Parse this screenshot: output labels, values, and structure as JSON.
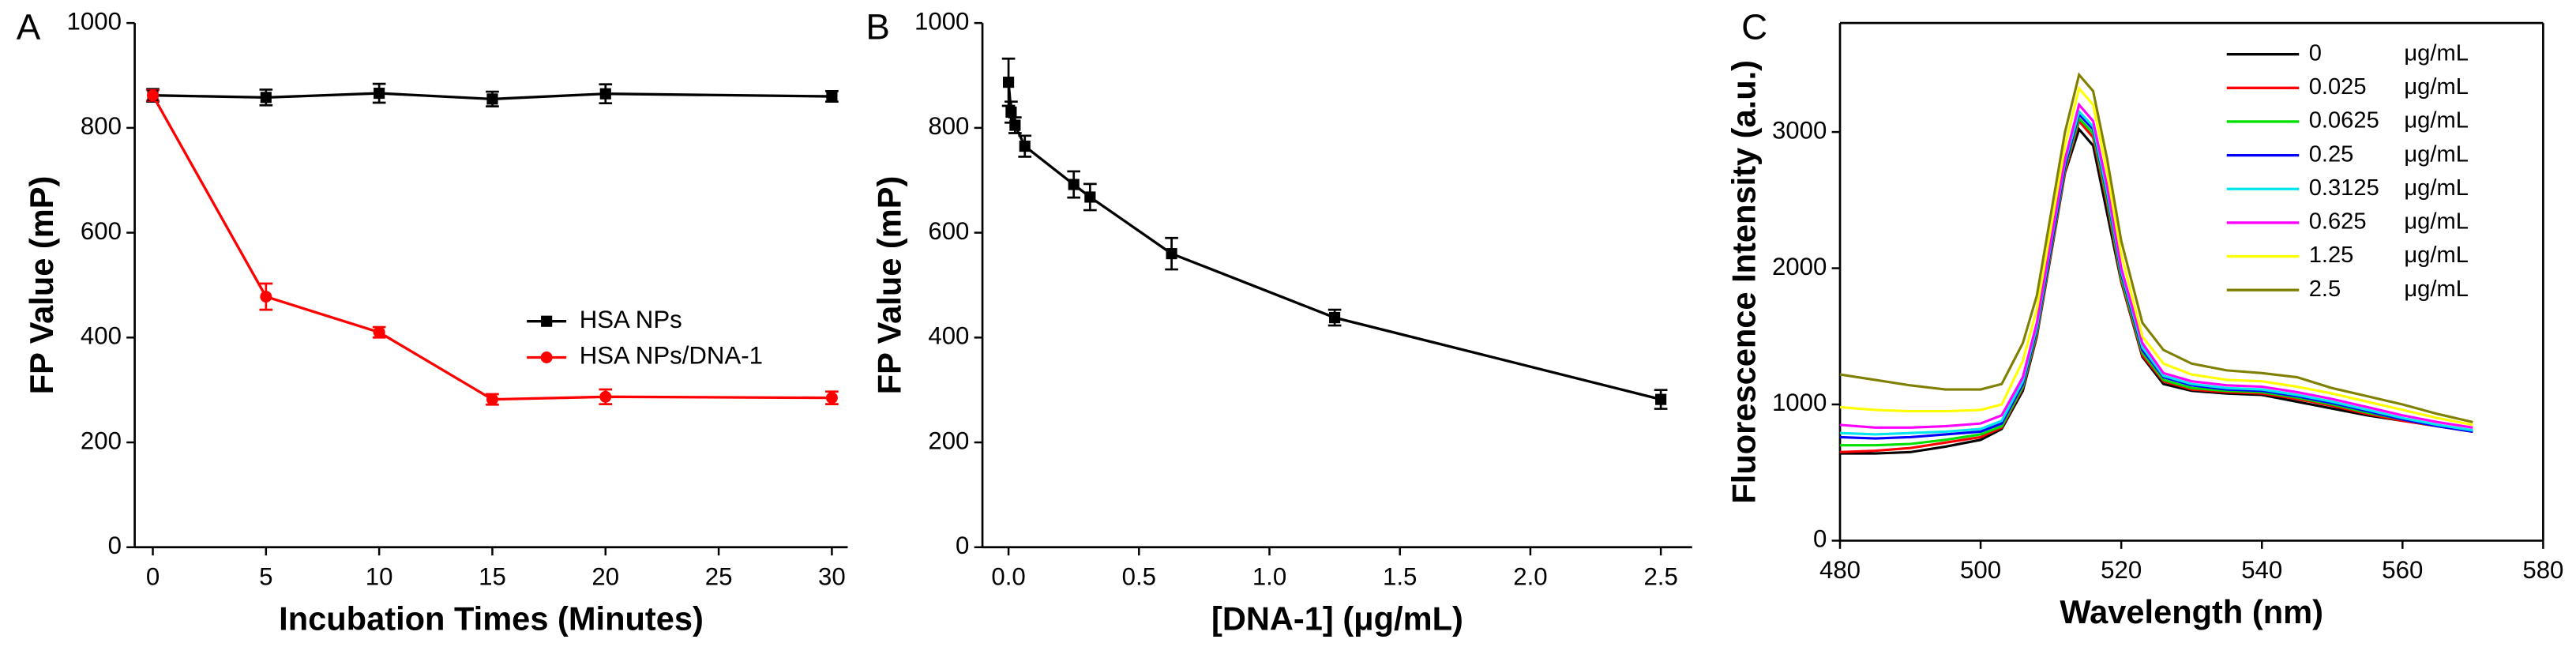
{
  "chart_data": [
    {
      "type": "line",
      "panel_label": "A",
      "x_label": "Incubation Times (Minutes)",
      "y_label": "FP Value (mP)",
      "x": [
        0,
        5,
        10,
        15,
        20,
        30
      ],
      "series": [
        {
          "name": "HSA NPs",
          "color": "#000000",
          "marker": "square",
          "values": [
            862,
            858,
            866,
            855,
            865,
            860
          ],
          "errors": [
            12,
            15,
            18,
            14,
            18,
            10
          ]
        },
        {
          "name": "HSA NPs/DNA-1",
          "color": "#ff0000",
          "marker": "circle",
          "values": [
            862,
            478,
            410,
            282,
            287,
            285
          ],
          "errors": [
            10,
            25,
            10,
            10,
            14,
            12
          ]
        }
      ],
      "xlim": [
        -0.8,
        30.7
      ],
      "xticks": [
        0,
        5,
        10,
        15,
        20,
        25,
        30
      ],
      "ylim": [
        0,
        1000
      ],
      "yticks": [
        0,
        200,
        400,
        600,
        800,
        1000
      ],
      "legend": "center-right",
      "frame": "open"
    },
    {
      "type": "line",
      "panel_label": "B",
      "x_label": "[DNA-1] (μg/mL)",
      "y_label": "FP Value (mP)",
      "x": [
        0,
        0.01,
        0.025,
        0.0625,
        0.25,
        0.3125,
        0.625,
        1.25,
        2.5
      ],
      "series": [
        {
          "color": "#000000",
          "marker": "square",
          "values": [
            887,
            830,
            805,
            765,
            692,
            668,
            560,
            438,
            282
          ],
          "errors": [
            45,
            20,
            15,
            20,
            25,
            25,
            30,
            15,
            18
          ]
        }
      ],
      "xlim": [
        -0.1,
        2.62
      ],
      "xticks": [
        {
          "value": 0,
          "label": "0.0"
        },
        {
          "value": 0.5,
          "label": "0.5"
        },
        {
          "value": 1,
          "label": "1.0"
        },
        {
          "value": 1.5,
          "label": "1.5"
        },
        {
          "value": 2,
          "label": "2.0"
        },
        {
          "value": 2.5,
          "label": "2.5"
        }
      ],
      "ylim": [
        0,
        1000
      ],
      "yticks": [
        0,
        200,
        400,
        600,
        800,
        1000
      ],
      "frame": "open"
    },
    {
      "type": "spectrum",
      "panel_label": "C",
      "x_label": "Wavelength (nm)",
      "y_label": "Fluorescence Intensity (a.u.)",
      "legend_unit": "μg/mL",
      "x": [
        480,
        485,
        490,
        495,
        500,
        503,
        506,
        508,
        510,
        512,
        514,
        516,
        518,
        520,
        523,
        526,
        530,
        535,
        540,
        545,
        550,
        555,
        560,
        565,
        570
      ],
      "series": [
        {
          "name": "0",
          "color": "#000000",
          "values": [
            640,
            640,
            650,
            690,
            740,
            820,
            1100,
            1500,
            2100,
            2700,
            3020,
            2900,
            2400,
            1900,
            1350,
            1150,
            1100,
            1080,
            1070,
            1020,
            970,
            920,
            880,
            840,
            800
          ]
        },
        {
          "name": "0.025",
          "color": "#ff0000",
          "values": [
            650,
            660,
            680,
            720,
            760,
            830,
            1120,
            1510,
            2110,
            2710,
            3080,
            2960,
            2470,
            1910,
            1360,
            1170,
            1110,
            1090,
            1080,
            1040,
            990,
            930,
            880,
            840,
            800
          ]
        },
        {
          "name": "0.0625",
          "color": "#00e000",
          "values": [
            700,
            700,
            710,
            740,
            780,
            840,
            1130,
            1530,
            2130,
            2730,
            3100,
            2990,
            2500,
            1930,
            1380,
            1180,
            1120,
            1100,
            1090,
            1050,
            1000,
            940,
            890,
            840,
            810
          ]
        },
        {
          "name": "0.25",
          "color": "#0000ff",
          "values": [
            760,
            750,
            760,
            780,
            800,
            860,
            1150,
            1550,
            2150,
            2750,
            3130,
            3020,
            2540,
            1960,
            1400,
            1200,
            1140,
            1110,
            1100,
            1060,
            1010,
            950,
            890,
            840,
            800
          ]
        },
        {
          "name": "0.3125",
          "color": "#00e5ee",
          "values": [
            790,
            780,
            790,
            800,
            820,
            880,
            1170,
            1570,
            2180,
            2780,
            3150,
            3040,
            2560,
            1980,
            1420,
            1210,
            1150,
            1120,
            1110,
            1070,
            1020,
            960,
            900,
            850,
            810
          ]
        },
        {
          "name": "0.625",
          "color": "#ff00ff",
          "values": [
            850,
            830,
            830,
            840,
            860,
            920,
            1200,
            1600,
            2200,
            2800,
            3200,
            3080,
            2600,
            2000,
            1450,
            1230,
            1170,
            1140,
            1130,
            1090,
            1040,
            980,
            920,
            870,
            830
          ]
        },
        {
          "name": "1.25",
          "color": "#ffff00",
          "values": [
            980,
            960,
            950,
            950,
            960,
            1000,
            1320,
            1700,
            2300,
            2900,
            3320,
            3200,
            2700,
            2100,
            1500,
            1300,
            1220,
            1180,
            1170,
            1130,
            1080,
            1020,
            960,
            900,
            850
          ]
        },
        {
          "name": "2.5",
          "color": "#808000",
          "values": [
            1220,
            1180,
            1140,
            1110,
            1110,
            1150,
            1450,
            1800,
            2400,
            3000,
            3420,
            3300,
            2800,
            2200,
            1600,
            1400,
            1300,
            1250,
            1230,
            1200,
            1120,
            1060,
            1000,
            930,
            870
          ]
        }
      ],
      "xlim": [
        480,
        580
      ],
      "xticks": [
        480,
        500,
        520,
        540,
        560,
        580
      ],
      "ylim": [
        0,
        3800
      ],
      "yticks": [
        0,
        1000,
        2000,
        3000
      ],
      "legend": "upper-right",
      "frame": "box"
    }
  ]
}
